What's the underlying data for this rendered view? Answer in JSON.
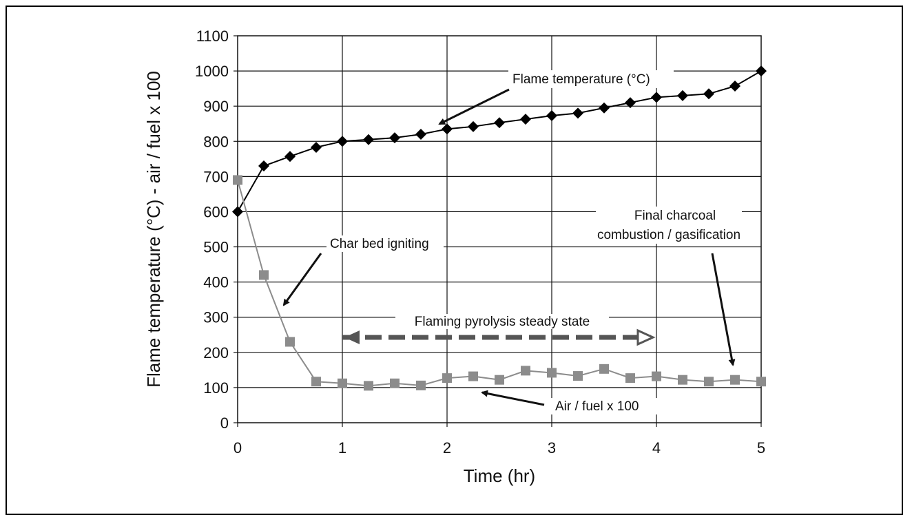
{
  "chart_data": {
    "type": "line",
    "xlabel": "Time (hr)",
    "ylabel": "Flame temperature (°C) - air / fuel x 100",
    "xlim": [
      0,
      5
    ],
    "ylim": [
      0,
      1100
    ],
    "x_ticks": [
      "0",
      "1",
      "2",
      "3",
      "4",
      "5"
    ],
    "y_ticks": [
      "0",
      "100",
      "200",
      "300",
      "400",
      "500",
      "600",
      "700",
      "800",
      "900",
      "1000",
      "1100"
    ],
    "grid": true,
    "series": [
      {
        "name": "Flame temperature (°C)",
        "color": "#000000",
        "marker": "diamond",
        "x": [
          0,
          0.25,
          0.5,
          0.75,
          1,
          1.25,
          1.5,
          1.75,
          2,
          2.25,
          2.5,
          2.75,
          3,
          3.25,
          3.5,
          3.75,
          4,
          4.25,
          4.5,
          4.75,
          5
        ],
        "y": [
          600,
          730,
          757,
          783,
          800,
          805,
          810,
          820,
          835,
          842,
          853,
          863,
          873,
          880,
          895,
          910,
          925,
          930,
          935,
          957,
          1000
        ]
      },
      {
        "name": "Air / fuel x 100",
        "color": "#8c8c8c",
        "marker": "square",
        "x": [
          0,
          0.25,
          0.5,
          0.75,
          1,
          1.25,
          1.5,
          1.75,
          2,
          2.25,
          2.5,
          2.75,
          3,
          3.25,
          3.5,
          3.75,
          4,
          4.25,
          4.5,
          4.75,
          5
        ],
        "y": [
          690,
          420,
          230,
          117,
          112,
          105,
          112,
          106,
          127,
          132,
          122,
          148,
          142,
          133,
          153,
          127,
          132,
          122,
          117,
          122,
          117
        ]
      }
    ],
    "annotations": [
      {
        "id": "flame",
        "text": "Flame temperature (°C)"
      },
      {
        "id": "char",
        "text": "Char bed igniting"
      },
      {
        "id": "final1",
        "text": "Final charcoal"
      },
      {
        "id": "final2",
        "text": "combustion / gasification"
      },
      {
        "id": "steady",
        "text": "Flaming pyrolysis steady state"
      },
      {
        "id": "airfuel",
        "text": "Air / fuel x 100"
      }
    ]
  }
}
